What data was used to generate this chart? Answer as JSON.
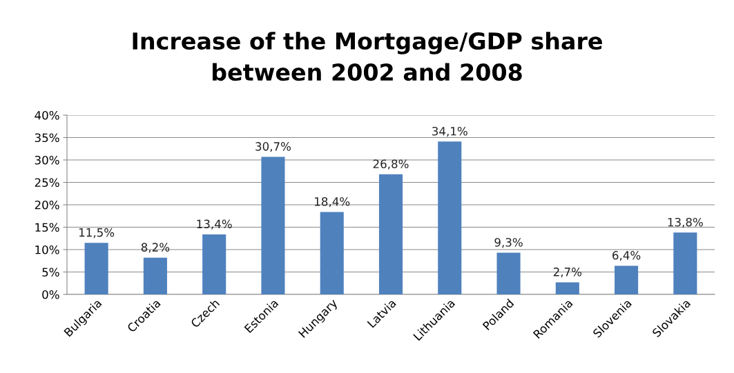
{
  "chart_data": {
    "type": "bar",
    "title": "Increase of the Mortgage/GDP share\nbetween 2002 and 2008",
    "categories": [
      "Bulgaria",
      "Croatia",
      "Czech",
      "Estonia",
      "Hungary",
      "Latvia",
      "Lithuania",
      "Poland",
      "Romania",
      "Slovenia",
      "Slovakia"
    ],
    "values": [
      11.5,
      8.2,
      13.4,
      30.7,
      18.4,
      26.8,
      34.1,
      9.3,
      2.7,
      6.4,
      13.8
    ],
    "value_labels": [
      "11,5%",
      "8,2%",
      "13,4%",
      "30,7%",
      "18,4%",
      "26,8%",
      "34,1%",
      "9,3%",
      "2,7%",
      "6,4%",
      "13,8%"
    ],
    "color": "#4f81bd",
    "ylim": [
      0,
      40
    ],
    "yticks": [
      {
        "value": 0,
        "label": "0%"
      },
      {
        "value": 5,
        "label": "5%"
      },
      {
        "value": 10,
        "label": "10%"
      },
      {
        "value": 15,
        "label": "15%"
      },
      {
        "value": 20,
        "label": "20%"
      },
      {
        "value": 25,
        "label": "25%"
      },
      {
        "value": 30,
        "label": "30%"
      },
      {
        "value": 35,
        "label": "35%"
      },
      {
        "value": 40,
        "label": "40%"
      }
    ],
    "grid": "y"
  }
}
